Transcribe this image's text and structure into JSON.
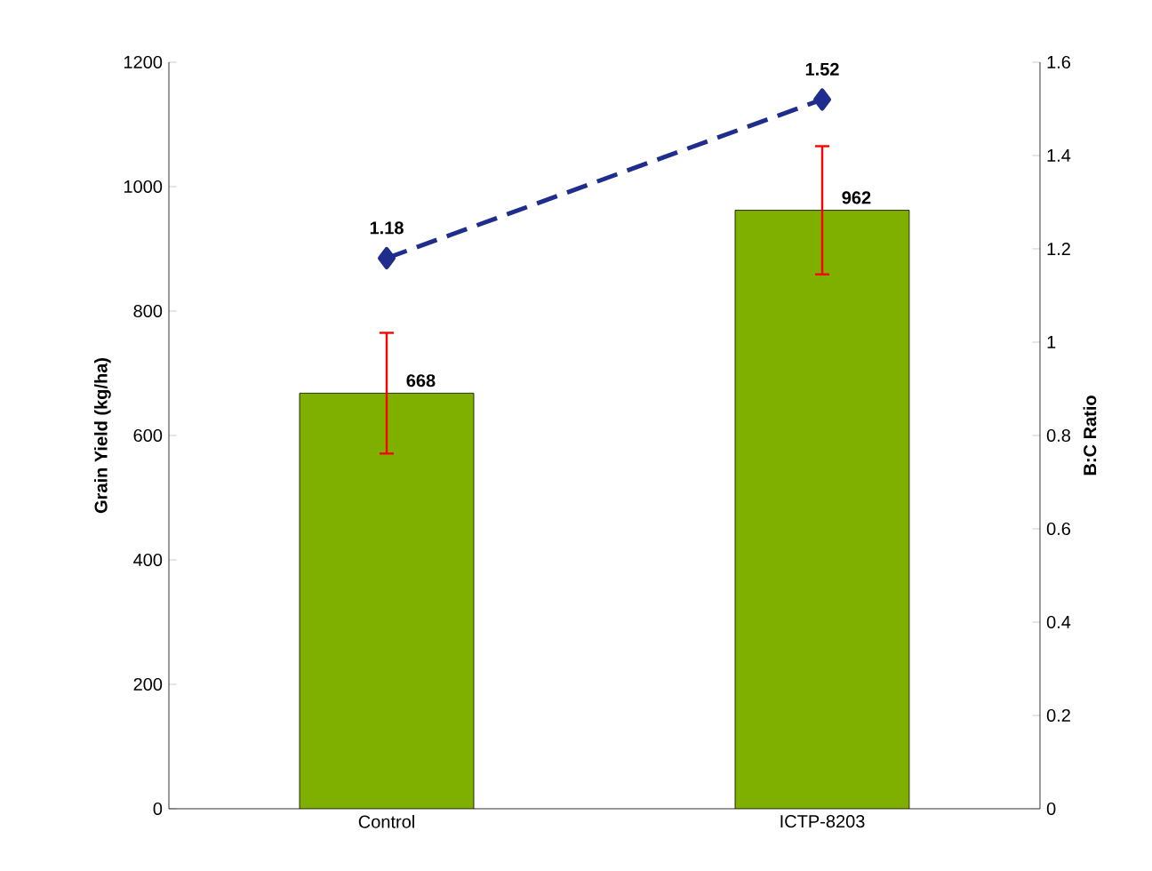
{
  "chart_data": {
    "type": "bar",
    "categories": [
      "Control",
      "ICTP-8203"
    ],
    "ylabel": "Grain Yield (kg/ha)",
    "y2label": "B:C Ratio",
    "ylim": [
      0,
      1200
    ],
    "yticks": [
      0,
      200,
      400,
      600,
      800,
      1000,
      1200
    ],
    "y2lim": [
      0,
      1.6
    ],
    "y2ticks": [
      0,
      0.2,
      0.4,
      0.6,
      0.8,
      1,
      1.2,
      1.4,
      1.6
    ],
    "data_labels": true,
    "series": [
      {
        "color": "#7fb000",
        "values": [
          668,
          962
        ],
        "errors": [
          97,
          103
        ]
      },
      {
        "type": "line",
        "axis": "y2",
        "color": "#1f2d8c",
        "values": [
          1.18,
          1.52
        ],
        "marker": "diamond",
        "line_style": "dashed"
      }
    ]
  }
}
